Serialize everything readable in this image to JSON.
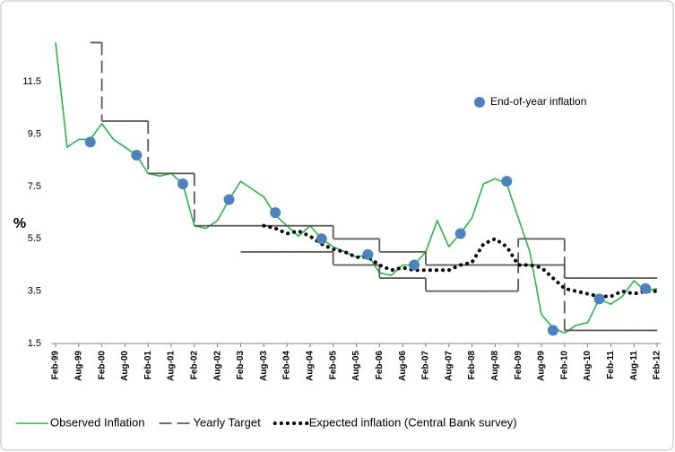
{
  "chart_data": {
    "type": "line",
    "ylabel": "%",
    "categories": [
      "Feb-99",
      null,
      "Aug-99",
      null,
      "Feb-00",
      null,
      "Aug-00",
      null,
      "Feb-01",
      null,
      "Aug-01",
      null,
      "Feb-02",
      null,
      "Aug-02",
      null,
      "Feb-03",
      null,
      "Aug-03",
      null,
      "Feb-04",
      null,
      "Aug-04",
      null,
      "Feb-05",
      null,
      "Aug-05",
      null,
      "Feb-06",
      null,
      "Aug-06",
      null,
      "Feb-07",
      null,
      "Aug-07",
      null,
      "Feb-08",
      null,
      "Aug-08",
      null,
      "Feb-09",
      null,
      "Aug-09",
      null,
      "Feb-10",
      null,
      "Aug-10",
      null,
      "Feb-11",
      null,
      "Aug-11",
      null,
      "Feb-12"
    ],
    "ylim": [
      1.5,
      13.6
    ],
    "yticks": [
      1.5,
      3.5,
      5.5,
      7.5,
      9.5,
      11.5
    ],
    "series": [
      {
        "name": "Observed Inflation",
        "color": "#2db34a",
        "style": "solid",
        "values": [
          13.0,
          9.0,
          9.3,
          9.3,
          9.9,
          9.3,
          9.0,
          8.7,
          8.0,
          7.9,
          8.0,
          7.6,
          6.0,
          5.9,
          6.2,
          7.0,
          7.7,
          7.4,
          7.1,
          6.4,
          6.0,
          5.6,
          6.0,
          5.5,
          5.2,
          5.0,
          4.8,
          4.9,
          4.2,
          4.1,
          4.5,
          4.5,
          5.0,
          6.2,
          5.2,
          5.7,
          6.3,
          7.6,
          7.8,
          7.6,
          6.3,
          5.0,
          2.6,
          2.1,
          1.9,
          2.2,
          2.3,
          3.2,
          3.0,
          3.3,
          3.9,
          3.5,
          3.6
        ]
      },
      {
        "name": "Yearly Target",
        "color": "#595959",
        "style": "dashed-step",
        "values": [
          null,
          null,
          null,
          13,
          10,
          10,
          10,
          10,
          8,
          8,
          8,
          8,
          6,
          6,
          6,
          6,
          6,
          6,
          6,
          6,
          6,
          6,
          6,
          6,
          5.5,
          5.5,
          5.5,
          5.5,
          5,
          5,
          5,
          5,
          4.5,
          4.5,
          4.5,
          4.5,
          4.5,
          4.5,
          4.5,
          4.5,
          5.5,
          5.5,
          5.5,
          5.5,
          4,
          4,
          4,
          4,
          4,
          4,
          4,
          4,
          4
        ]
      },
      {
        "color": "#595959",
        "style": "dashed-step",
        "values": [
          null,
          null,
          null,
          null,
          null,
          null,
          null,
          null,
          null,
          null,
          null,
          null,
          null,
          null,
          null,
          null,
          5,
          5,
          5,
          5,
          5,
          5,
          5,
          5,
          4.5,
          4.5,
          4.5,
          4.5,
          4,
          4,
          4,
          4,
          3.5,
          3.5,
          3.5,
          3.5,
          3.5,
          3.5,
          3.5,
          3.5,
          4.5,
          4.5,
          4.5,
          4.5,
          2,
          2,
          2,
          2,
          2,
          2,
          2,
          2,
          2
        ]
      },
      {
        "name": "Expected inflation (Central Bank survey)",
        "color": "#000000",
        "style": "dotted",
        "values": [
          null,
          null,
          null,
          null,
          null,
          null,
          null,
          null,
          null,
          null,
          null,
          null,
          null,
          null,
          null,
          null,
          null,
          null,
          6.0,
          5.9,
          5.7,
          5.8,
          5.6,
          5.3,
          5.1,
          5.0,
          4.8,
          4.8,
          4.5,
          4.3,
          4.4,
          4.3,
          4.3,
          4.3,
          4.3,
          4.5,
          4.6,
          5.3,
          5.5,
          5.2,
          4.5,
          4.5,
          4.4,
          4.0,
          3.6,
          3.5,
          3.4,
          3.3,
          3.3,
          3.5,
          3.4,
          3.5,
          3.5
        ]
      },
      {
        "name": "End-of-year inflation",
        "color": "#4f81bd",
        "style": "marker",
        "values": [
          null,
          null,
          null,
          9.2,
          null,
          null,
          null,
          8.7,
          null,
          null,
          null,
          7.6,
          null,
          null,
          null,
          7.0,
          null,
          null,
          null,
          6.5,
          null,
          null,
          null,
          5.5,
          null,
          null,
          null,
          4.9,
          null,
          null,
          null,
          4.5,
          null,
          null,
          null,
          5.7,
          null,
          null,
          null,
          7.7,
          null,
          null,
          null,
          2.0,
          null,
          null,
          null,
          3.2,
          null,
          null,
          null,
          3.6,
          null
        ]
      }
    ]
  }
}
